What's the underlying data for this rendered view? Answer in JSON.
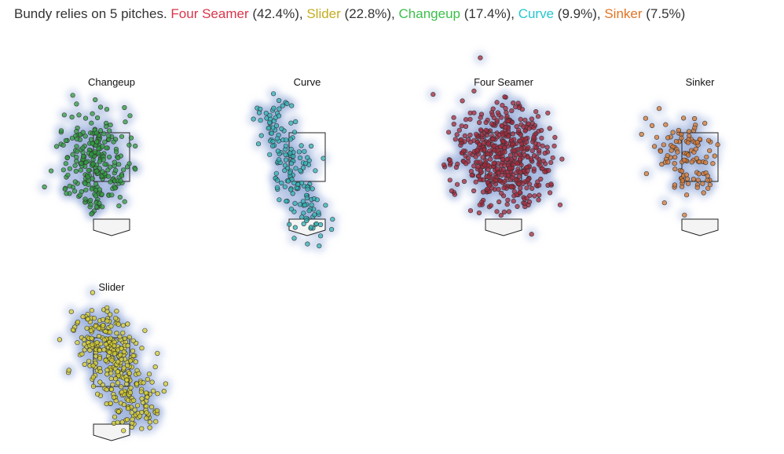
{
  "header": {
    "intro": "Bundy relies on 5 pitches.",
    "pitches": [
      {
        "name": "Four Seamer",
        "share": "(42.4%),",
        "color": "#d9354a"
      },
      {
        "name": "Slider",
        "share": "(22.8%),",
        "color": "#c4ad1f"
      },
      {
        "name": "Changeup",
        "share": "(17.4%),",
        "color": "#3cbf4a"
      },
      {
        "name": "Curve",
        "share": "(9.9%),",
        "color": "#25c6d2"
      },
      {
        "name": "Sinker",
        "share": "(7.5%)",
        "color": "#e27424"
      }
    ]
  },
  "panels": [
    {
      "title": "Changeup",
      "color": "#2f9e3e"
    },
    {
      "title": "Curve",
      "color": "#2fb4b8"
    },
    {
      "title": "Four Seamer",
      "color": "#a8283c"
    },
    {
      "title": "Sinker",
      "color": "#d97a30"
    },
    {
      "title": "Slider",
      "color": "#d8d030"
    }
  ]
}
